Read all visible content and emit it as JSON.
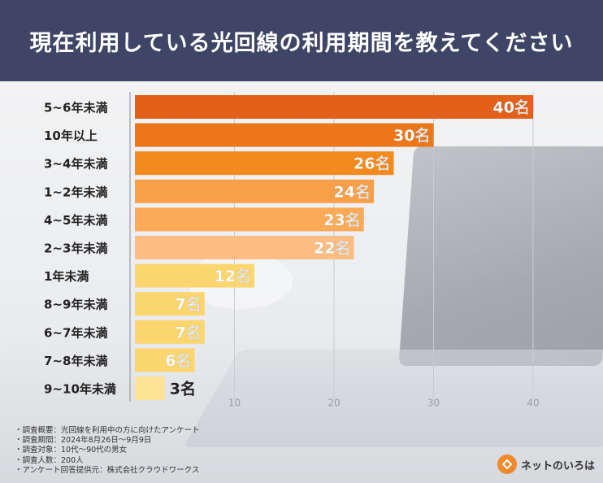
{
  "title": "現在利用している光回線の利用期間を教えてください",
  "chart_data": {
    "type": "bar",
    "orientation": "horizontal",
    "unit": "名",
    "categories": [
      "5~6年未満",
      "10年以上",
      "3~4年未満",
      "1~2年未満",
      "4~5年未満",
      "2~3年未満",
      "1年未満",
      "8~9年未満",
      "6~7年未満",
      "7~8年未満",
      "9~10年未満"
    ],
    "values": [
      40,
      30,
      26,
      24,
      23,
      22,
      12,
      7,
      7,
      6,
      3
    ],
    "xlim": [
      0,
      40
    ],
    "xticks": [
      10,
      20,
      30,
      40
    ],
    "grid": true,
    "colors": [
      "#e2601a",
      "#eb7719",
      "#f38a1d",
      "#f8a047",
      "#fbaa58",
      "#fbbd82",
      "#fbd66e",
      "#fbd66e",
      "#fbd66e",
      "#fbd66e",
      "#fde194"
    ]
  },
  "footnotes": [
    "・調査概要：光回線を利用中の方に向けたアンケート",
    "・調査期間：2024年8月26日～9月9日",
    "・調査対象：10代～90代の男女",
    "・調査人数：200人",
    "・アンケート回答提供元：株式会社クラウドワークス"
  ],
  "logo": {
    "text": "ネットのいろは"
  }
}
